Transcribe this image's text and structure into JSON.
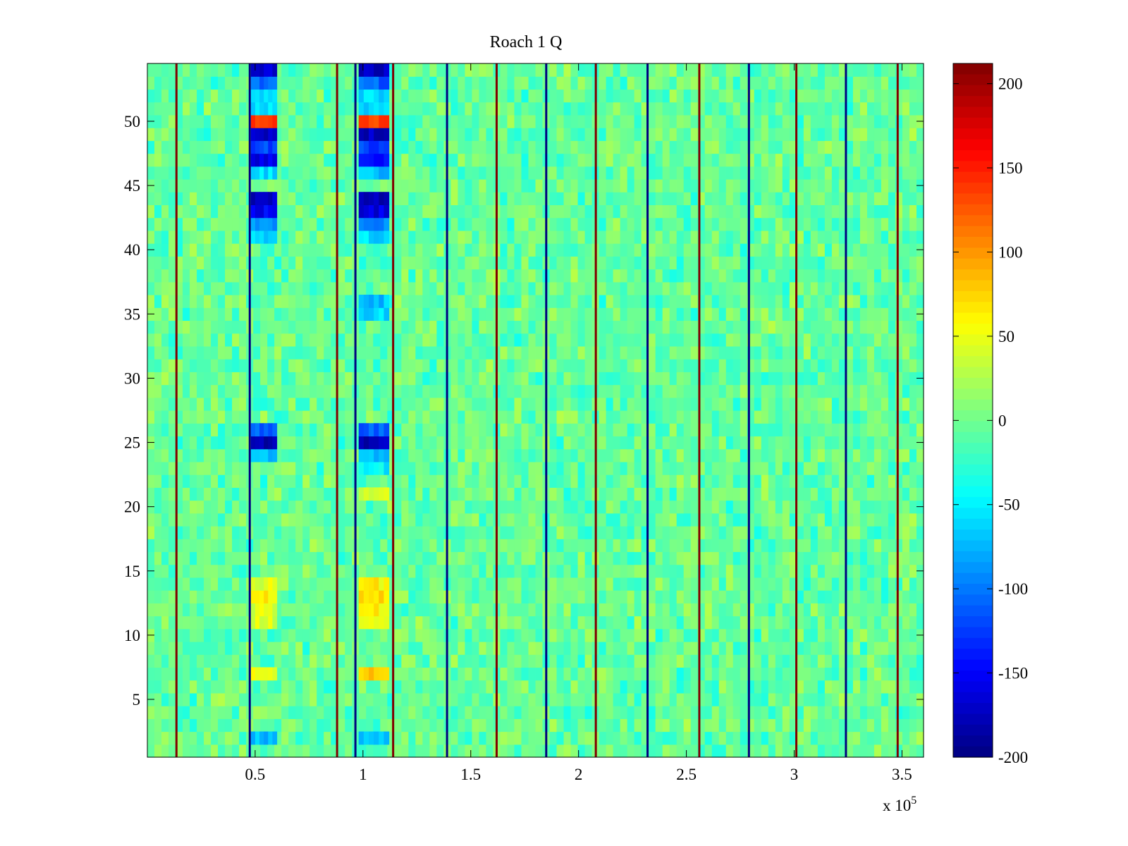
{
  "chart_data": {
    "type": "heatmap",
    "title": "Roach 1 Q",
    "xlabel": "",
    "ylabel": "",
    "x_exponent_label": "x 10",
    "x_exponent_power": "5",
    "xlim": [
      0,
      3.6
    ],
    "ylim": [
      0.5,
      54.5
    ],
    "rows": 54,
    "colormap": "jet",
    "x_ticks": [
      0.5,
      1,
      1.5,
      2,
      2.5,
      3,
      3.5
    ],
    "x_tick_labels": [
      "0.5",
      "1",
      "1.5",
      "2",
      "2.5",
      "3",
      "3.5"
    ],
    "y_ticks": [
      5,
      10,
      15,
      20,
      25,
      30,
      35,
      40,
      45,
      50
    ],
    "y_tick_labels": [
      "5",
      "10",
      "15",
      "20",
      "25",
      "30",
      "35",
      "40",
      "45",
      "50"
    ],
    "colorbar": {
      "clim": [
        -200,
        212
      ],
      "ticks": [
        200,
        150,
        100,
        50,
        0,
        -50,
        -100,
        -150,
        -200
      ],
      "tick_labels": [
        "200",
        "150",
        "100",
        "50",
        "0",
        "-50",
        "-100",
        "-150",
        "-200"
      ]
    },
    "background_value_range": [
      -40,
      30
    ],
    "vertical_lines": [
      {
        "x": 0.135,
        "value": 212
      },
      {
        "x": 0.475,
        "value": -200
      },
      {
        "x": 0.88,
        "value": 212
      },
      {
        "x": 0.965,
        "value": -200
      },
      {
        "x": 1.14,
        "value": 212
      },
      {
        "x": 1.39,
        "value": -200
      },
      {
        "x": 1.62,
        "value": 212
      },
      {
        "x": 1.85,
        "value": -200
      },
      {
        "x": 2.08,
        "value": 212
      },
      {
        "x": 2.32,
        "value": -200
      },
      {
        "x": 2.56,
        "value": 212
      },
      {
        "x": 2.79,
        "value": -200
      },
      {
        "x": 3.01,
        "value": 212
      },
      {
        "x": 3.24,
        "value": -200
      },
      {
        "x": 3.48,
        "value": 212
      }
    ],
    "feature_bands": [
      {
        "x_range": [
          0.48,
          0.6
        ],
        "row_values": {
          "54": -170,
          "53": -110,
          "52": -60,
          "51": -60,
          "50": 140,
          "49": -175,
          "48": -120,
          "47": -160,
          "46": -60,
          "44": -170,
          "43": -150,
          "42": -90,
          "41": -60,
          "26": -110,
          "25": -180,
          "24": -70,
          "14": 45,
          "13": 60,
          "12": 45,
          "11": 40,
          "7": 55,
          "2": -70
        }
      },
      {
        "x_range": [
          0.98,
          1.12
        ],
        "row_values": {
          "54": -170,
          "53": -110,
          "52": -60,
          "51": -60,
          "50": 140,
          "49": -175,
          "48": -120,
          "47": -150,
          "46": -70,
          "44": -175,
          "43": -160,
          "42": -90,
          "41": -60,
          "36": -70,
          "35": -60,
          "26": -110,
          "25": -180,
          "24": -70,
          "23": -50,
          "21": 40,
          "14": 60,
          "13": 70,
          "12": 60,
          "11": 50,
          "7": 75,
          "2": -70
        }
      }
    ]
  }
}
